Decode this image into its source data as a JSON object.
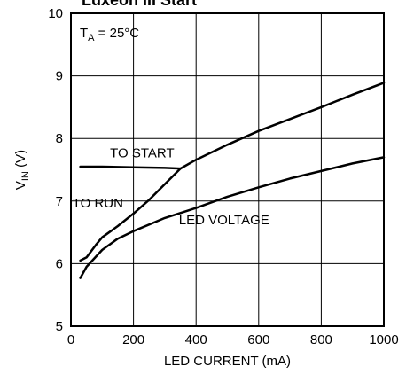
{
  "chart_data": {
    "type": "line",
    "title": "Luxeon III Start",
    "xlabel": "LED CURRENT (mA)",
    "ylabel_main": "V",
    "ylabel_sub": "IN",
    "ylabel_unit": " (V)",
    "xlim": [
      0,
      1000
    ],
    "ylim": [
      5,
      10
    ],
    "xticks": [
      0,
      200,
      400,
      600,
      800,
      1000
    ],
    "yticks": [
      5,
      6,
      7,
      8,
      9,
      10
    ],
    "grid": true,
    "condition": {
      "prefix": "T",
      "sub": "A",
      "suffix": " = 25°C"
    },
    "series": [
      {
        "name": "TO RUN",
        "x": [
          30,
          50,
          80,
          100,
          150,
          200,
          250,
          300,
          350,
          400,
          500,
          600,
          700,
          800,
          900,
          1000
        ],
        "y": [
          6.05,
          6.1,
          6.3,
          6.42,
          6.6,
          6.8,
          7.02,
          7.27,
          7.52,
          7.66,
          7.9,
          8.12,
          8.31,
          8.5,
          8.7,
          8.89
        ]
      },
      {
        "name": "TO START",
        "x": [
          30,
          100,
          200,
          300,
          350
        ],
        "y": [
          7.55,
          7.55,
          7.54,
          7.53,
          7.52
        ]
      },
      {
        "name": "LED VOLTAGE",
        "x": [
          30,
          50,
          100,
          150,
          200,
          300,
          400,
          500,
          600,
          700,
          800,
          900,
          1000
        ],
        "y": [
          5.77,
          5.95,
          6.22,
          6.4,
          6.52,
          6.73,
          6.89,
          7.07,
          7.22,
          7.36,
          7.48,
          7.6,
          7.7
        ]
      }
    ],
    "annotations": [
      "TO START",
      "TO RUN",
      "LED VOLTAGE"
    ]
  }
}
